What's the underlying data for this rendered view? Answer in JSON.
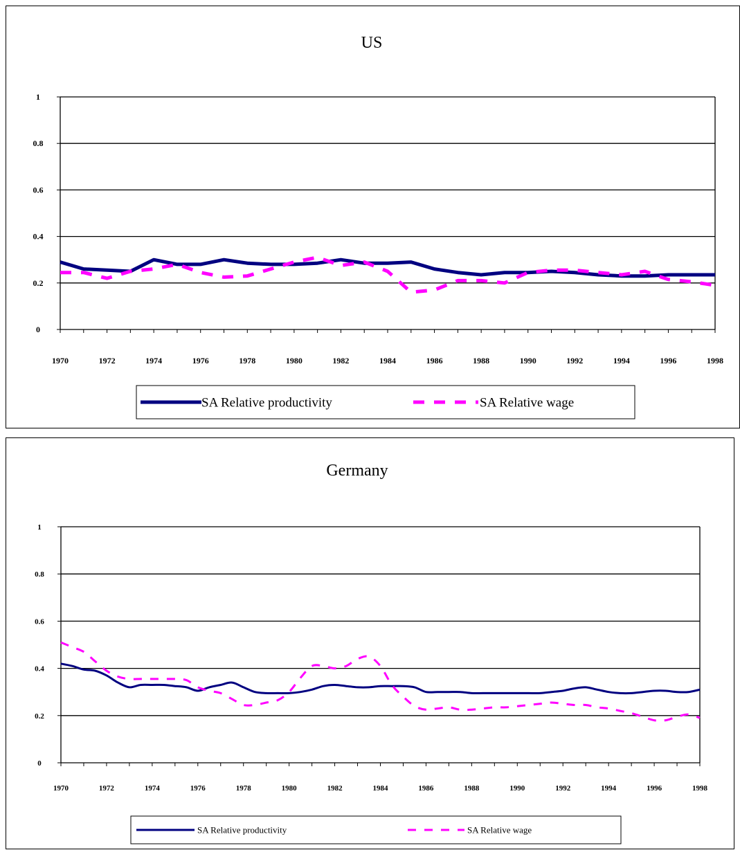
{
  "chart_data": [
    {
      "type": "line",
      "title": "US",
      "xlabel": "",
      "ylabel": "",
      "ylim": [
        0,
        1
      ],
      "yticks": [
        "0",
        "0.2",
        "0.4",
        "0.6",
        "0.8",
        "1"
      ],
      "xticks": [
        "1970",
        "1972",
        "1974",
        "1976",
        "1978",
        "1980",
        "1982",
        "1984",
        "1986",
        "1988",
        "1990",
        "1992",
        "1994",
        "1996",
        "1998"
      ],
      "x": [
        1970,
        1971,
        1972,
        1973,
        1974,
        1975,
        1976,
        1977,
        1978,
        1979,
        1980,
        1981,
        1982,
        1983,
        1984,
        1985,
        1986,
        1987,
        1988,
        1989,
        1990,
        1991,
        1992,
        1993,
        1994,
        1995,
        1996,
        1997,
        1998
      ],
      "grid": true,
      "legend": "bottom",
      "series": [
        {
          "name": "SA Relative productivity",
          "color": "#000080",
          "style": "solid",
          "values": [
            0.29,
            0.26,
            0.255,
            0.25,
            0.3,
            0.28,
            0.28,
            0.3,
            0.285,
            0.28,
            0.28,
            0.285,
            0.3,
            0.285,
            0.285,
            0.29,
            0.26,
            0.245,
            0.235,
            0.245,
            0.245,
            0.25,
            0.245,
            0.235,
            0.23,
            0.23,
            0.235,
            0.235,
            0.235
          ]
        },
        {
          "name": "SA Relative wage",
          "color": "#FF00FF",
          "style": "dashed",
          "values": [
            0.245,
            0.245,
            0.22,
            0.25,
            0.26,
            0.28,
            0.245,
            0.225,
            0.23,
            0.26,
            0.29,
            0.31,
            0.275,
            0.29,
            0.25,
            0.16,
            0.17,
            0.21,
            0.21,
            0.2,
            0.245,
            0.255,
            0.255,
            0.245,
            0.235,
            0.25,
            0.215,
            0.205,
            0.19
          ]
        }
      ]
    },
    {
      "type": "line",
      "title": "Germany",
      "xlabel": "",
      "ylabel": "",
      "ylim": [
        0,
        1
      ],
      "yticks": [
        "0",
        "0.2",
        "0.4",
        "0.6",
        "0.8",
        "1"
      ],
      "xticks": [
        "1970",
        "1972",
        "1974",
        "1976",
        "1978",
        "1980",
        "1982",
        "1984",
        "1986",
        "1988",
        "1990",
        "1992",
        "1994",
        "1996",
        "1998"
      ],
      "x": [
        1970,
        1970.5,
        1971,
        1971.5,
        1972,
        1972.5,
        1973,
        1973.5,
        1974,
        1974.5,
        1975,
        1975.5,
        1976,
        1976.5,
        1977,
        1977.5,
        1978,
        1978.5,
        1979,
        1979.5,
        1980,
        1980.5,
        1981,
        1981.5,
        1982,
        1982.5,
        1983,
        1983.5,
        1984,
        1984.5,
        1985,
        1985.5,
        1986,
        1986.5,
        1987,
        1987.5,
        1988,
        1988.5,
        1989,
        1989.5,
        1990,
        1990.5,
        1991,
        1991.5,
        1992,
        1992.5,
        1993,
        1993.5,
        1994,
        1994.5,
        1995,
        1995.5,
        1996,
        1996.5,
        1997,
        1997.5,
        1998
      ],
      "grid": true,
      "legend": "bottom",
      "series": [
        {
          "name": "SA Relative productivity",
          "color": "#000080",
          "style": "solid",
          "values": [
            0.42,
            0.41,
            0.395,
            0.39,
            0.37,
            0.34,
            0.32,
            0.33,
            0.33,
            0.33,
            0.325,
            0.32,
            0.305,
            0.32,
            0.33,
            0.34,
            0.32,
            0.3,
            0.295,
            0.295,
            0.295,
            0.3,
            0.31,
            0.325,
            0.33,
            0.325,
            0.32,
            0.32,
            0.325,
            0.325,
            0.325,
            0.32,
            0.3,
            0.3,
            0.3,
            0.3,
            0.295,
            0.295,
            0.295,
            0.295,
            0.295,
            0.295,
            0.295,
            0.3,
            0.305,
            0.315,
            0.32,
            0.31,
            0.3,
            0.295,
            0.295,
            0.3,
            0.305,
            0.305,
            0.3,
            0.3,
            0.31
          ]
        },
        {
          "name": "SA Relative wage",
          "color": "#FF00FF",
          "style": "dashed",
          "values": [
            0.51,
            0.49,
            0.47,
            0.43,
            0.39,
            0.365,
            0.355,
            0.355,
            0.355,
            0.355,
            0.355,
            0.35,
            0.32,
            0.305,
            0.295,
            0.27,
            0.245,
            0.245,
            0.255,
            0.265,
            0.3,
            0.36,
            0.41,
            0.41,
            0.4,
            0.41,
            0.44,
            0.45,
            0.41,
            0.33,
            0.28,
            0.24,
            0.225,
            0.23,
            0.235,
            0.225,
            0.225,
            0.23,
            0.235,
            0.235,
            0.24,
            0.245,
            0.25,
            0.255,
            0.25,
            0.245,
            0.245,
            0.235,
            0.23,
            0.22,
            0.21,
            0.195,
            0.18,
            0.18,
            0.195,
            0.205,
            0.19
          ]
        }
      ]
    }
  ]
}
